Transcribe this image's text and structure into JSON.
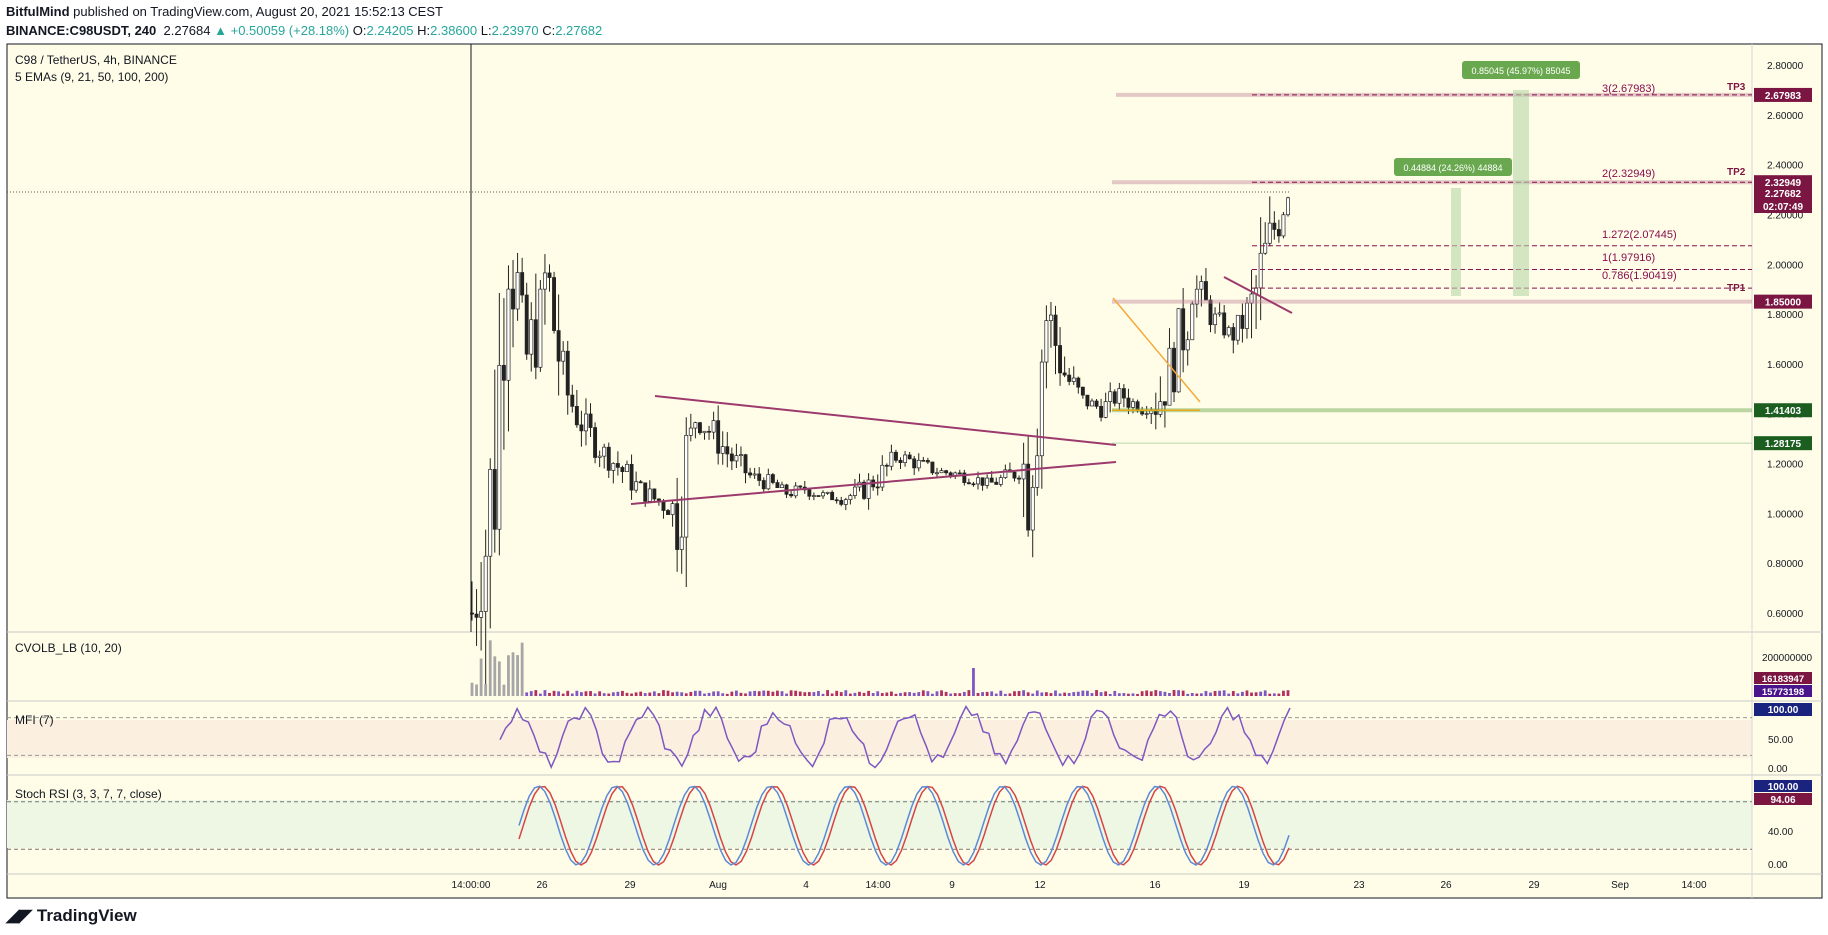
{
  "header": {
    "author": "BitfulMind",
    "published_text": "published on TradingView.com, August 20, 2021 15:52:13 CEST",
    "symbol": "BINANCE:C98USDT, 240",
    "last": "2.27684",
    "change": "▲ +0.50059 (+28.18%)",
    "o_label": "O:",
    "o": "2.24205",
    "h_label": "H:",
    "h": "2.38600",
    "l_label": "L:",
    "l": "2.23970",
    "c_label": "C:",
    "c": "2.27682"
  },
  "legend": {
    "pair": "C98 / TetherUS, 4h, BINANCE",
    "emas": "5 EMAs (9, 21, 50, 100, 200)",
    "cvolb": "CVOLB_LB (10, 20)",
    "mfi": "MFI (7)",
    "stoch": "Stoch RSI (3, 3, 7, 7, close)"
  },
  "price_axis": [
    "2.80000",
    "2.60000",
    "2.40000",
    "2.20000",
    "2.00000",
    "1.80000",
    "1.60000",
    "1.40000",
    "1.20000",
    "1.00000",
    "0.80000",
    "0.60000"
  ],
  "price_badges": {
    "tp3": "2.67983",
    "tp2": "2.32949",
    "last": "2.27682",
    "countdown": "02:07:49",
    "tp1": "1.85000",
    "support": "1.41403",
    "low_level": "1.28175"
  },
  "tp_labels": {
    "tp3": "TP3",
    "tp2": "TP2",
    "tp1": "TP1"
  },
  "fib_labels": [
    "3(2.67983)",
    "2(2.32949)",
    "1.272(2.07445)",
    "1(1.97916)",
    "0.786(1.90419)"
  ],
  "measure_labels": {
    "big": "0.85045 (45.97%) 85045",
    "small": "0.44884 (24.26%) 44884"
  },
  "volume_axis": "200000000",
  "volume_badges": [
    "16183947",
    "15773198"
  ],
  "mfi_axis": [
    "50.00",
    "0.00"
  ],
  "mfi_badge": "100.00",
  "stoch_axis": [
    "40.00",
    "0.00"
  ],
  "stoch_badges": [
    "100.00",
    "94.06"
  ],
  "time_axis": [
    "14:00:00",
    "26",
    "29",
    "Aug",
    "4",
    "14:00",
    "9",
    "12",
    "16",
    "19",
    "23",
    "26",
    "29",
    "Sep",
    "14:00"
  ],
  "brand": "TradingView",
  "colors": {
    "bg": "#fffde7",
    "up": "#26a69a",
    "tp": "#7b1541",
    "fib": "#880e4f",
    "support": "#1b5e20",
    "wedge": "#9c3a6e",
    "measure": "#6aa84f",
    "mfi_line": "#7e57c2",
    "stoch_k": "#5b8ad6",
    "stoch_d": "#d64545"
  },
  "chart_data": {
    "type": "candlestick",
    "title": "C98 / TetherUS, 4h, BINANCE",
    "ylim": [
      0.5,
      2.88
    ],
    "x_ticks": [
      "14:00:00",
      "26",
      "29",
      "Aug",
      "4",
      "14:00",
      "9",
      "12",
      "16",
      "19",
      "23",
      "26",
      "29",
      "Sep",
      "14:00"
    ],
    "close_path": [
      0.6,
      1.0,
      2.1,
      1.6,
      1.95,
      1.5,
      1.35,
      1.25,
      1.18,
      1.1,
      1.05,
      1.0,
      1.38,
      1.32,
      1.22,
      1.15,
      1.12,
      1.08,
      1.1,
      1.07,
      1.06,
      1.09,
      1.15,
      1.23,
      1.2,
      1.17,
      1.16,
      1.14,
      1.12,
      1.15,
      1.2,
      1.8,
      1.55,
      1.45,
      1.42,
      1.48,
      1.42,
      1.45,
      1.65,
      1.9,
      1.78,
      1.72,
      1.8,
      2.1,
      2.27682
    ],
    "levels": {
      "tp1": 1.85,
      "tp2": 2.32949,
      "tp3": 2.67983,
      "support": 1.41403,
      "low": 1.28175
    },
    "fib_extension": [
      {
        "ratio": "0.786",
        "price": 1.90419
      },
      {
        "ratio": "1",
        "price": 1.97916
      },
      {
        "ratio": "1.272",
        "price": 2.07445
      },
      {
        "ratio": "2",
        "price": 2.32949
      },
      {
        "ratio": "3",
        "price": 2.67983
      }
    ],
    "indicators": {
      "mfi_last": 100.0,
      "stoch_k_last": 100.0,
      "stoch_d_last": 94.06,
      "volume_last": [
        16183947,
        15773198
      ]
    }
  }
}
